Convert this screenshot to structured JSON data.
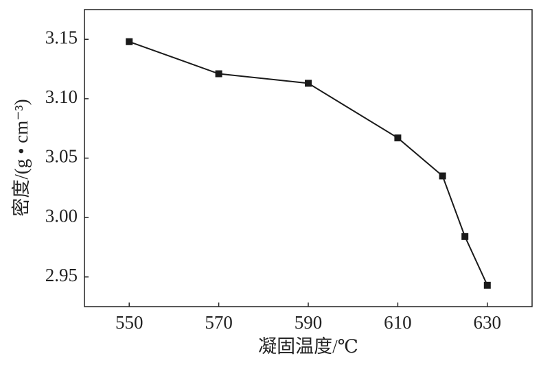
{
  "chart_data": {
    "type": "line",
    "xlabel": "凝固温度/℃",
    "ylabel": "密度/(g • cm⁻³)",
    "x": [
      550,
      570,
      590,
      610,
      620,
      625,
      630
    ],
    "series": [
      {
        "color": "#1a1a1a",
        "values": [
          3.148,
          3.121,
          3.113,
          3.067,
          3.035,
          2.984,
          2.943
        ]
      }
    ],
    "xlim": [
      540,
      640
    ],
    "xticks": [
      550,
      570,
      590,
      610,
      630
    ],
    "ylim": [
      2.925,
      3.175
    ],
    "yticks": [
      {
        "value": 2.95,
        "label": "2.95"
      },
      {
        "value": 3.0,
        "label": "3.00"
      },
      {
        "value": 3.05,
        "label": "3.05"
      },
      {
        "value": 3.1,
        "label": "3.10"
      },
      {
        "value": 3.15,
        "label": "3.15"
      }
    ],
    "marker": "square"
  }
}
